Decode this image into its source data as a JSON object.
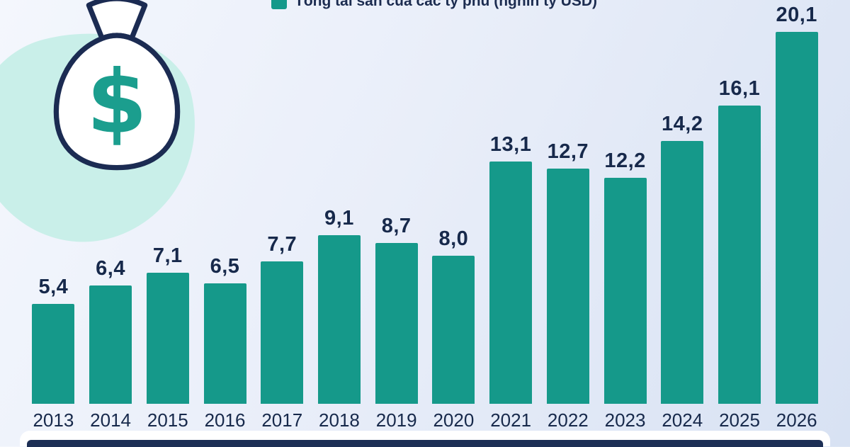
{
  "legend": {
    "label": "Tổng tài sản của các tỷ phú (nghìn tỷ USD)"
  },
  "chart_data": {
    "type": "bar",
    "title": "Tổng tài sản của các tỷ phú (nghìn tỷ USD)",
    "categories": [
      "2013",
      "2014",
      "2015",
      "2016",
      "2017",
      "2018",
      "2019",
      "2020",
      "2021",
      "2022",
      "2023",
      "2024",
      "2025",
      "2026"
    ],
    "values": [
      5.4,
      6.4,
      7.1,
      6.5,
      7.7,
      9.1,
      8.7,
      8.0,
      13.1,
      12.7,
      12.2,
      14.2,
      16.1,
      20.1
    ],
    "value_labels": [
      "5,4",
      "6,4",
      "7,1",
      "6,5",
      "7,7",
      "9,1",
      "8,7",
      "8,0",
      "13,1",
      "12,7",
      "12,2",
      "14,2",
      "16,1",
      "20,1"
    ],
    "xlabel": "",
    "ylabel": "",
    "ylim": [
      0,
      20.1
    ],
    "unit": "nghìn tỷ USD",
    "grid": false,
    "legend_position": "top",
    "bar_color": "#15998a",
    "label_color": "#17294b"
  },
  "icons": {
    "money_bag": "money-bag-icon"
  },
  "colors": {
    "bar": "#15998a",
    "legend_swatch": "#15998a",
    "text": "#17294b",
    "background_blob": "#c9efe9",
    "footer_bar": "#1d2f55",
    "bag_outline": "#1b2b52",
    "bag_dollar": "#1b9e8e"
  }
}
